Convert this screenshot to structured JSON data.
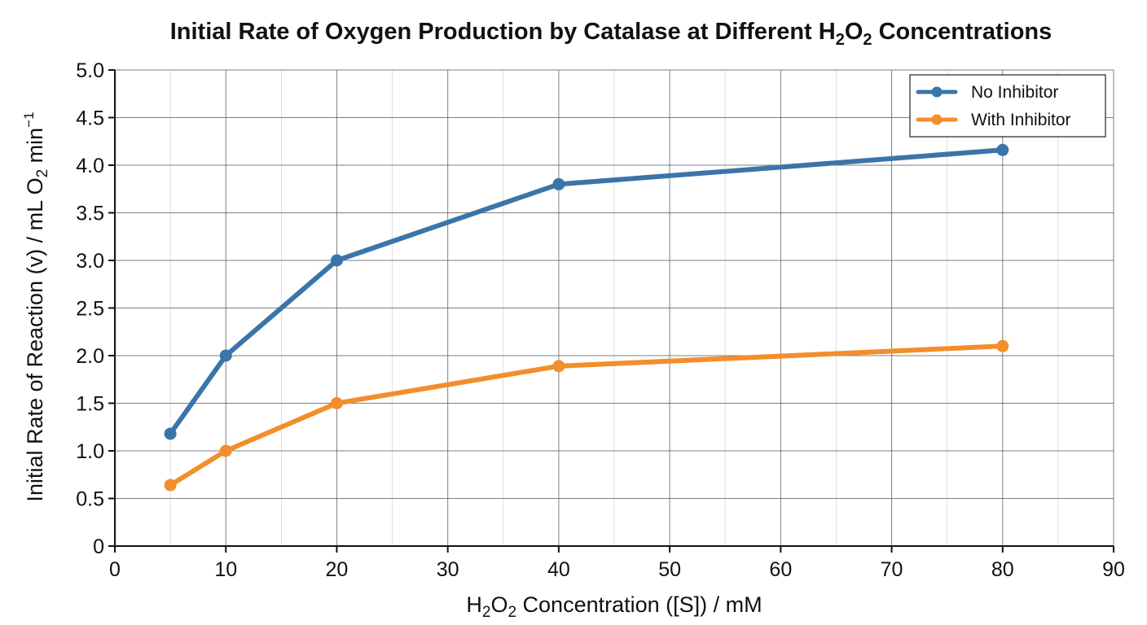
{
  "chart_data": {
    "type": "line",
    "title": {
      "pre": "Initial Rate of Oxygen Production by Catalase at Different H",
      "sub1": "2",
      "mid": "O",
      "sub2": "2",
      "post": " Concentrations"
    },
    "xlabel": {
      "pre": "H",
      "sub1": "2",
      "mid": "O",
      "sub2": "2",
      "post": " Concentration ([S]) / mM"
    },
    "ylabel": {
      "pre": "Initial Rate of Reaction (v) / mL O",
      "sub": "2",
      "mid": " min",
      "sup": "−1"
    },
    "xlim": [
      0,
      90
    ],
    "ylim": [
      0,
      5
    ],
    "x_ticks": [
      0,
      10,
      20,
      30,
      40,
      50,
      60,
      70,
      80,
      90
    ],
    "y_ticks": [
      0,
      0.5,
      1.0,
      1.5,
      2.0,
      2.5,
      3.0,
      3.5,
      4.0,
      4.5,
      5.0
    ],
    "y_tick_labels": [
      "0",
      "0.5",
      "1.0",
      "1.5",
      "2.0",
      "2.5",
      "3.0",
      "3.5",
      "4.0",
      "4.5",
      "5.0"
    ],
    "grid": true,
    "legend_position": "top-right",
    "series": [
      {
        "name": "No Inhibitor",
        "color": "#3a75aa",
        "x": [
          5,
          10,
          20,
          40,
          80
        ],
        "y": [
          1.18,
          2.0,
          3.0,
          3.8,
          4.16
        ]
      },
      {
        "name": "With Inhibitor",
        "color": "#f28e2b",
        "x": [
          5,
          10,
          20,
          40,
          80
        ],
        "y": [
          0.64,
          1.0,
          1.5,
          1.89,
          2.1
        ]
      }
    ]
  }
}
